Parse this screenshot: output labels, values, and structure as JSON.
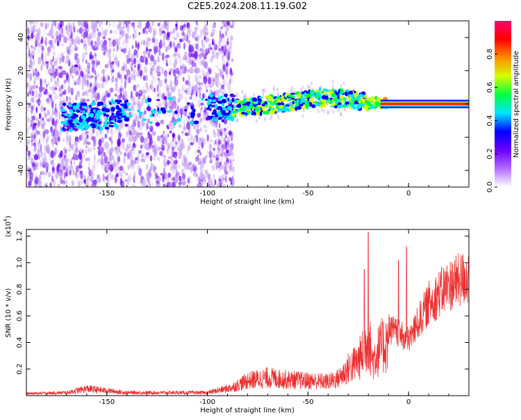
{
  "title": "C2E5.2024.208.11.19.G02",
  "chart_data": [
    {
      "type": "heatmap",
      "panel": "spectrogram",
      "xlabel": "Height of straight line (km)",
      "ylabel": "Frequency (Hz)",
      "xlim": [
        -190,
        30
      ],
      "ylim": [
        -50,
        50
      ],
      "xticks": [
        -150,
        -100,
        -50,
        0
      ],
      "yticks": [
        -40,
        -20,
        0,
        20,
        40
      ],
      "colorbar": {
        "label": "Normalized spectral amplitude",
        "range": [
          0,
          1
        ],
        "ticks": [
          "0.0",
          "0.2",
          "0.4",
          "0.6",
          "0.8"
        ],
        "colors": [
          "#ffffff",
          "#b36bff",
          "#6a00ff",
          "#0000ff",
          "#00e5ff",
          "#00ff40",
          "#d4ff00",
          "#ff8c00",
          "#ff0000",
          "#ff0070"
        ]
      },
      "signal_ridge": {
        "x": [
          -170,
          -150,
          -145,
          -100,
          -80,
          -60,
          -45,
          -30,
          -20,
          -10,
          -5,
          0,
          30
        ],
        "y": [
          -8,
          -7,
          -6,
          -3,
          -2,
          1,
          4,
          3,
          1,
          0,
          0,
          0,
          0
        ]
      },
      "noise_region_x": [
        -190,
        -87
      ]
    },
    {
      "type": "line",
      "panel": "snr",
      "xlabel": "Height of straight line (km)",
      "ylabel": "SNR (10 * v/v)",
      "multiplier_label": "(x10",
      "multiplier_exp": "4",
      "multiplier_close": ")",
      "xlim": [
        -190,
        30
      ],
      "ylim": [
        0,
        1.25
      ],
      "xticks": [
        -150,
        -100,
        -50,
        0
      ],
      "yticks": [
        "0.2",
        "0.4",
        "0.6",
        "0.8",
        "1.0",
        "1.2"
      ],
      "series": [
        {
          "color": "#ee3030",
          "envelope_x": [
            -190,
            -170,
            -160,
            -150,
            -140,
            -100,
            -88,
            -80,
            -70,
            -60,
            -50,
            -40,
            -35,
            -30,
            -25,
            -22,
            -20,
            -18,
            -15,
            -10,
            -5,
            0,
            10,
            20,
            30
          ],
          "envelope_y": [
            0.02,
            0.03,
            0.07,
            0.05,
            0.03,
            0.03,
            0.08,
            0.15,
            0.18,
            0.16,
            0.15,
            0.14,
            0.17,
            0.27,
            0.35,
            0.45,
            0.6,
            0.35,
            0.45,
            0.55,
            0.5,
            0.45,
            0.75,
            0.9,
            0.97
          ],
          "spikes": [
            {
              "x": -22,
              "y": 0.95
            },
            {
              "x": -20,
              "y": 1.23
            },
            {
              "x": -5,
              "y": 1.02
            },
            {
              "x": -1,
              "y": 1.12
            }
          ]
        }
      ]
    }
  ]
}
